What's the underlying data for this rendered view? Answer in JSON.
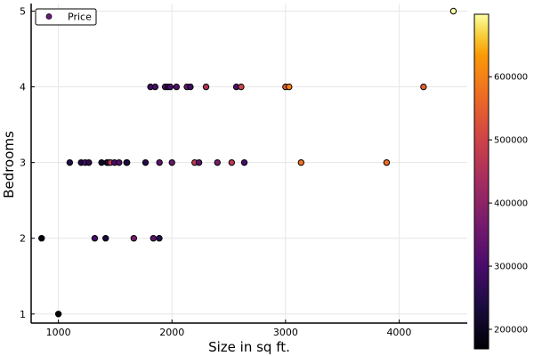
{
  "chart_data": {
    "type": "scatter",
    "title": "",
    "xlabel": "Size in sq ft.",
    "ylabel": "Bedrooms",
    "xlim": [
      760,
      4600
    ],
    "ylim": [
      0.88,
      5.1
    ],
    "xticks": [
      1000,
      2000,
      3000,
      4000
    ],
    "yticks": [
      1,
      2,
      3,
      4,
      5
    ],
    "grid": true,
    "legend": {
      "position": "top-left",
      "entries": [
        "Price"
      ]
    },
    "colorbar": {
      "label": "",
      "range": [
        169000,
        699000
      ],
      "ticks": [
        200000,
        300000,
        400000,
        500000,
        600000
      ],
      "colormap": "inferno"
    },
    "series": [
      {
        "name": "Price",
        "points": [
          {
            "x": 1000,
            "y": 1,
            "c": 170000
          },
          {
            "x": 852,
            "y": 2,
            "c": 179000
          },
          {
            "x": 1320,
            "y": 2,
            "c": 300000
          },
          {
            "x": 1416,
            "y": 2,
            "c": 232000
          },
          {
            "x": 1664,
            "y": 2,
            "c": 368000
          },
          {
            "x": 1836,
            "y": 2,
            "c": 330000
          },
          {
            "x": 1888,
            "y": 2,
            "c": 255000
          },
          {
            "x": 1100,
            "y": 3,
            "c": 250000
          },
          {
            "x": 1200,
            "y": 3,
            "c": 242000
          },
          {
            "x": 1236,
            "y": 3,
            "c": 300000
          },
          {
            "x": 1268,
            "y": 3,
            "c": 260000
          },
          {
            "x": 1380,
            "y": 3,
            "c": 212000
          },
          {
            "x": 1427,
            "y": 3,
            "c": 199000
          },
          {
            "x": 1437,
            "y": 3,
            "c": 250000
          },
          {
            "x": 1458,
            "y": 3,
            "c": 465000
          },
          {
            "x": 1494,
            "y": 3,
            "c": 300000
          },
          {
            "x": 1534,
            "y": 3,
            "c": 315000
          },
          {
            "x": 1600,
            "y": 3,
            "c": 330000
          },
          {
            "x": 1604,
            "y": 3,
            "c": 242000
          },
          {
            "x": 1767,
            "y": 3,
            "c": 252000
          },
          {
            "x": 1890,
            "y": 3,
            "c": 330000
          },
          {
            "x": 2000,
            "y": 3,
            "c": 347000
          },
          {
            "x": 2200,
            "y": 3,
            "c": 475000
          },
          {
            "x": 2238,
            "y": 3,
            "c": 330000
          },
          {
            "x": 2400,
            "y": 3,
            "c": 370000
          },
          {
            "x": 2526,
            "y": 3,
            "c": 470000
          },
          {
            "x": 2637,
            "y": 3,
            "c": 300000
          },
          {
            "x": 3137,
            "y": 3,
            "c": 580000
          },
          {
            "x": 3890,
            "y": 3,
            "c": 573000
          },
          {
            "x": 1811,
            "y": 4,
            "c": 285000
          },
          {
            "x": 1852,
            "y": 4,
            "c": 300000
          },
          {
            "x": 1940,
            "y": 4,
            "c": 330000
          },
          {
            "x": 1962,
            "y": 4,
            "c": 260000
          },
          {
            "x": 1985,
            "y": 4,
            "c": 300000
          },
          {
            "x": 2040,
            "y": 4,
            "c": 315000
          },
          {
            "x": 2132,
            "y": 4,
            "c": 345000
          },
          {
            "x": 2162,
            "y": 4,
            "c": 287000
          },
          {
            "x": 2300,
            "y": 4,
            "c": 450000
          },
          {
            "x": 2567,
            "y": 4,
            "c": 315000
          },
          {
            "x": 2609,
            "y": 4,
            "c": 500000
          },
          {
            "x": 3000,
            "y": 4,
            "c": 540000
          },
          {
            "x": 3031,
            "y": 4,
            "c": 600000
          },
          {
            "x": 4215,
            "y": 4,
            "c": 550000
          },
          {
            "x": 4478,
            "y": 5,
            "c": 700000
          }
        ]
      }
    ]
  }
}
